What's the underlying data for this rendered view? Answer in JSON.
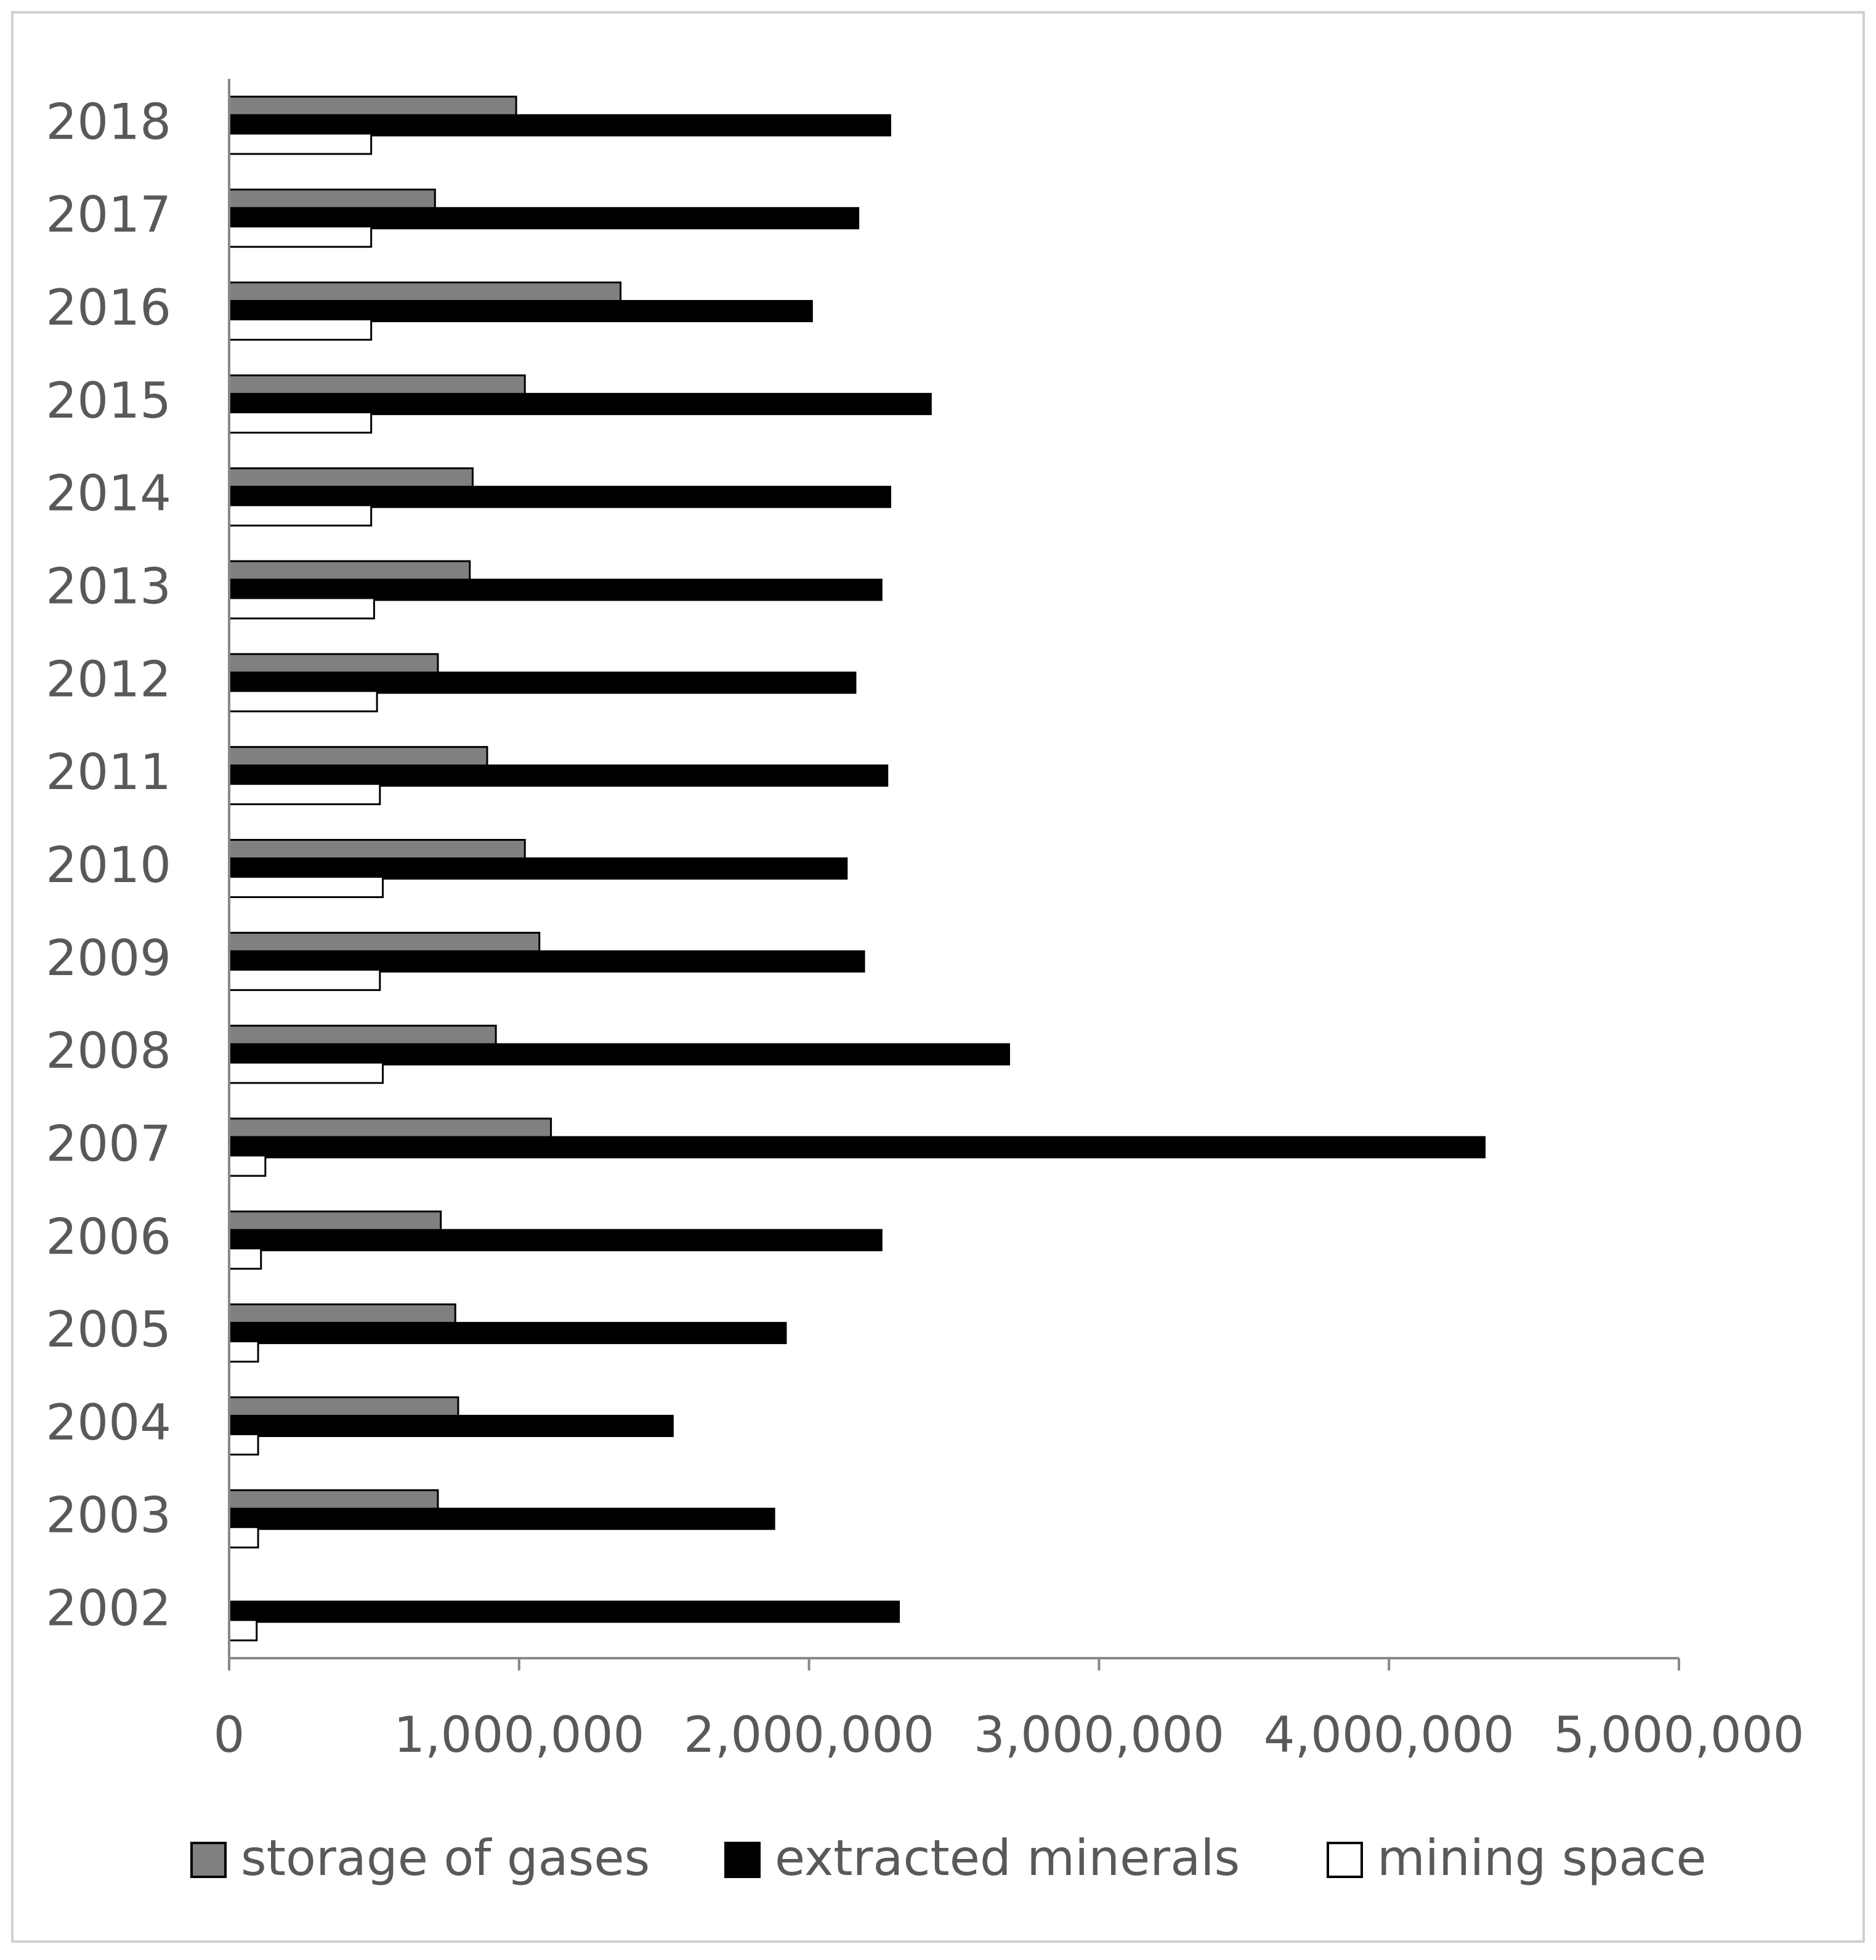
{
  "chart_data": {
    "type": "hbar",
    "categories": [
      "2002",
      "2003",
      "2004",
      "2005",
      "2006",
      "2007",
      "2008",
      "2009",
      "2010",
      "2011",
      "2012",
      "2013",
      "2014",
      "2015",
      "2016",
      "2017",
      "2018"
    ],
    "series": [
      {
        "name": "storage of gases",
        "color": "#808080",
        "values": [
          null,
          720000,
          790000,
          780000,
          730000,
          1110000,
          920000,
          1070000,
          1020000,
          890000,
          720000,
          830000,
          840000,
          1020000,
          1350000,
          710000,
          990000
        ]
      },
      {
        "name": "extracted minerals",
        "color": "#000000",
        "values": [
          2310000,
          1880000,
          1530000,
          1920000,
          2250000,
          4330000,
          2690000,
          2190000,
          2130000,
          2270000,
          2160000,
          2250000,
          2280000,
          2420000,
          2010000,
          2170000,
          2280000
        ]
      },
      {
        "name": "mining space",
        "color": "#ffffff",
        "values": [
          95000,
          100000,
          100000,
          100000,
          110000,
          125000,
          530000,
          520000,
          530000,
          520000,
          510000,
          500000,
          490000,
          490000,
          490000,
          490000,
          490000
        ]
      }
    ],
    "xlim": [
      0,
      5000000
    ],
    "xticks": [
      0,
      {
        "value": 1000000,
        "label": "1,000,000"
      },
      {
        "value": 2000000,
        "label": "2,000,000"
      },
      {
        "value": 3000000,
        "label": "3,000,000"
      },
      {
        "value": 4000000,
        "label": "4,000,000"
      },
      {
        "value": 5000000,
        "label": "5,000,000"
      }
    ],
    "legend": "bottom"
  }
}
